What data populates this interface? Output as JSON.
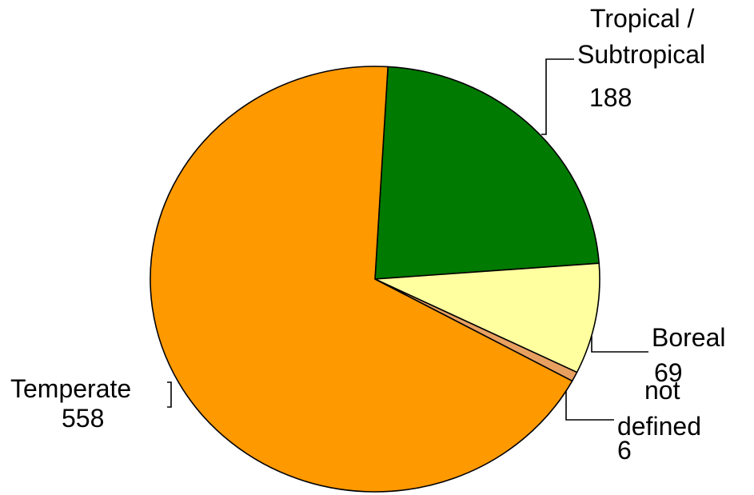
{
  "chart_data": {
    "type": "pie",
    "slices": [
      {
        "label_lines": [
          "Tropical /",
          "Subtropical"
        ],
        "value": 188,
        "value_label": "188",
        "color": "#007a00"
      },
      {
        "label_lines": [
          "Boreal"
        ],
        "value": 69,
        "value_label": "69",
        "color": "#ffffa0"
      },
      {
        "label_lines": [
          "not",
          "defined"
        ],
        "value": 6,
        "value_label": "6",
        "color": "#e8a060"
      },
      {
        "label_lines": [
          "Temperate"
        ],
        "value": 558,
        "value_label": "558",
        "color": "#ff9900"
      }
    ],
    "legend": "none"
  }
}
